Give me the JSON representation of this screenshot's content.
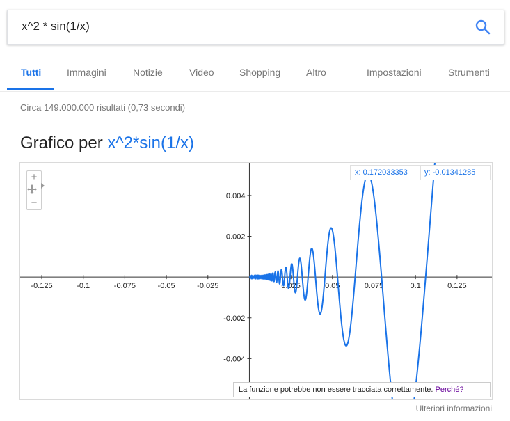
{
  "search": {
    "query": "x^2 * sin(1/x)"
  },
  "tabs": {
    "all": "Tutti",
    "images": "Immagini",
    "news": "Notizie",
    "video": "Video",
    "shopping": "Shopping",
    "more": "Altro",
    "settings": "Impostazioni",
    "tools": "Strumenti"
  },
  "result_stats": "Circa 149.000.000 risultati (0,73 secondi)",
  "graph": {
    "title_prefix": "Grafico per",
    "function": "x^2*sin(1/x)",
    "zoom_in": "+",
    "zoom_out": "−",
    "coord_x": "x: 0.172033353",
    "coord_y": "y: -0.01341285",
    "warning": "La funzione potrebbe non essere tracciata correttamente.",
    "warning_link": "Perché?",
    "more_info": "Ulteriori informazioni"
  },
  "chart_data": {
    "type": "line",
    "function": "x^2*sin(1/x)",
    "xlim": [
      -0.138,
      0.146
    ],
    "ylim": [
      -0.006,
      0.0056
    ],
    "x_ticks": [
      -0.125,
      -0.1,
      -0.075,
      -0.05,
      -0.025,
      0.025,
      0.05,
      0.075,
      0.1,
      0.125
    ],
    "x_tick_labels": [
      "-0.125",
      "-0.1",
      "-0.075",
      "-0.05",
      "-0.025",
      "0.025",
      "0.05",
      "0.075",
      "0.1",
      "0.125"
    ],
    "y_ticks": [
      0.004,
      0.002,
      -0.002,
      -0.004
    ],
    "y_tick_labels": [
      "0.004",
      "0.002",
      "-0.002",
      "-0.004"
    ],
    "line_color": "#1a73e8"
  },
  "colors": {
    "accent": "#1a73e8",
    "link_visited": "#660099"
  }
}
